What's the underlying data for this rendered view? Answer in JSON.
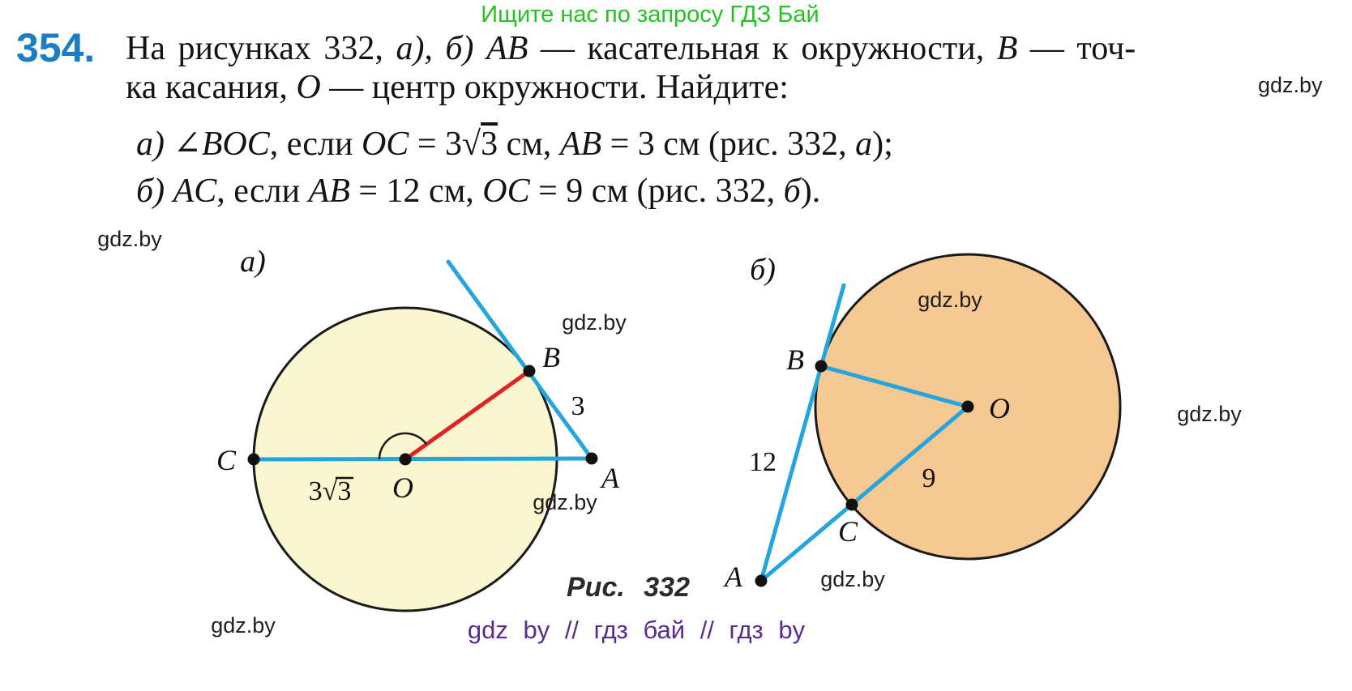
{
  "header": {
    "promo": "Ищите нас по запросу ГДЗ Бай",
    "watermark_top_right": "gdz.by"
  },
  "problem": {
    "number": "354.",
    "line1": [
      {
        "t": "На рисунках 332, "
      },
      {
        "t": "а), б) AB",
        "i": true
      },
      {
        "t": " — касательная к окружности, "
      },
      {
        "t": "B",
        "i": true
      },
      {
        "t": " — точ-"
      }
    ],
    "line2": [
      {
        "t": "ка касания, "
      },
      {
        "t": "O",
        "i": true
      },
      {
        "t": " — центр окружности. Найдите:"
      }
    ],
    "item_a": [
      {
        "t": "а) ",
        "i": true
      },
      {
        "t": "∠"
      },
      {
        "t": "BOC",
        "i": true
      },
      {
        "t": ", если "
      },
      {
        "t": "OC",
        "i": true
      },
      {
        "t": " = 3"
      },
      {
        "t": "3",
        "sqrt": true
      },
      {
        "t": " см, "
      },
      {
        "t": "AB",
        "i": true
      },
      {
        "t": " = 3 см (рис. 332, "
      },
      {
        "t": "а",
        "i": true
      },
      {
        "t": ");"
      }
    ],
    "item_b": [
      {
        "t": "б) ",
        "i": true
      },
      {
        "t": "AC",
        "i": true
      },
      {
        "t": ", если "
      },
      {
        "t": "AB",
        "i": true
      },
      {
        "t": " = 12 см, "
      },
      {
        "t": "OC",
        "i": true
      },
      {
        "t": " = 9 см (рис. 332, "
      },
      {
        "t": "б",
        "i": true
      },
      {
        "t": ")."
      }
    ]
  },
  "figure": {
    "caption": "Рис. 332",
    "watermark": "gdz.by",
    "footer_tags": "gdz by // гдз бай // гдз by",
    "diagram_a": {
      "panel_label": "а)",
      "labels": {
        "B": "B",
        "C": "C",
        "A": "A",
        "O": "O"
      },
      "len_AB": "3",
      "len_OC": "3√3"
    },
    "diagram_b": {
      "panel_label": "б)",
      "labels": {
        "B": "B",
        "C": "C",
        "A": "A",
        "O": "O"
      },
      "len_AB": "12",
      "len_OC": "9"
    }
  },
  "colors": {
    "promo_green": "#24c324",
    "number_blue": "#1b7ec5",
    "line_blue": "#23a5dd",
    "radius_red": "#e02125",
    "circle_a_fill": "#faf6cf",
    "circle_b_fill": "#f6c892",
    "footer_purple": "#5c2b90",
    "text_dark": "#141414"
  }
}
